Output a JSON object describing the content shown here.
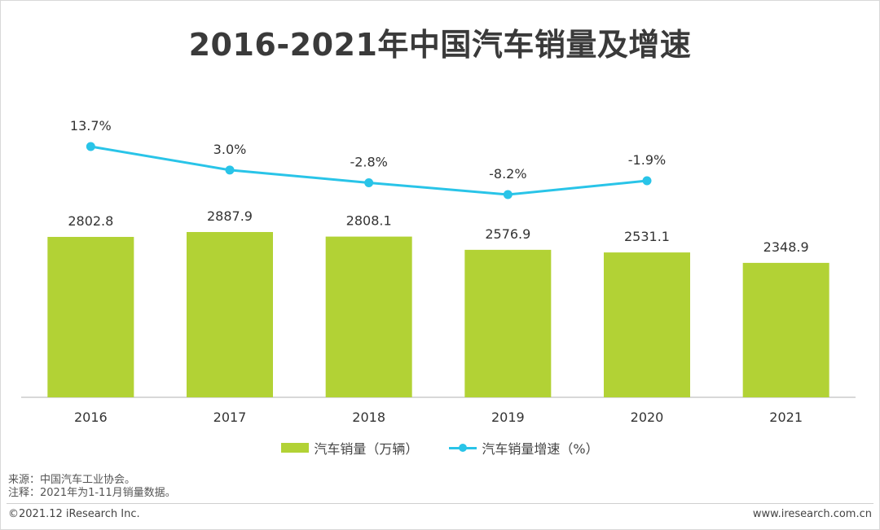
{
  "title": "2016-2021年中国汽车销量及增速",
  "colors": {
    "bar": "#b2d235",
    "line": "#29c4e8",
    "axis": "#cccccc"
  },
  "chart_data": {
    "type": "bar",
    "categories": [
      "2016",
      "2017",
      "2018",
      "2019",
      "2020",
      "2021"
    ],
    "series": [
      {
        "name": "汽车销量（万辆）",
        "type": "bar",
        "values": [
          2802.8,
          2887.9,
          2808.1,
          2576.9,
          2531.1,
          2348.9
        ],
        "labels": [
          "2802.8",
          "2887.9",
          "2808.1",
          "2576.9",
          "2531.1",
          "2348.9"
        ]
      },
      {
        "name": "汽车销量增速（%）",
        "type": "line",
        "values": [
          13.7,
          3.0,
          -2.8,
          -8.2,
          -1.9,
          null
        ],
        "labels": [
          "13.7%",
          "3.0%",
          "-2.8%",
          "-8.2%",
          "-1.9%",
          ""
        ]
      }
    ],
    "bar_ylim": [
      0,
      3000
    ],
    "line_ylim": [
      -20,
      65
    ],
    "legend_position": "bottom",
    "grid": false
  },
  "legend": {
    "bar_label": "汽车销量（万辆）",
    "line_label": "汽车销量增速（%）"
  },
  "notes": {
    "source": "来源：中国汽车工业协会。",
    "note": "注释：2021年为1-11月销量数据。"
  },
  "footer": {
    "left": "©2021.12 iResearch Inc.",
    "right": "www.iresearch.com.cn"
  }
}
